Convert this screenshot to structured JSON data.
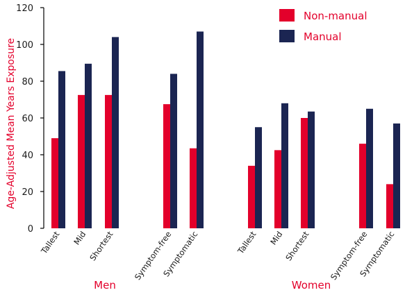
{
  "chart_data": {
    "type": "bar",
    "ylabel": "Age-Adjusted Mean Years Exposure",
    "ylim": [
      0,
      120
    ],
    "yticks": [
      0,
      20,
      40,
      60,
      80,
      100,
      120
    ],
    "categories": [
      "Tallest",
      "Mid",
      "Shortest",
      "Symptom-free",
      "Symptomatic",
      "Tallest",
      "Mid",
      "Shortest",
      "Symptom-free",
      "Symptomatic"
    ],
    "groups": [
      {
        "label": "Men",
        "categories": [
          "Tallest",
          "Mid",
          "Shortest",
          "Symptom-free",
          "Symptomatic"
        ]
      },
      {
        "label": "Women",
        "categories": [
          "Tallest",
          "Mid",
          "Shortest",
          "Symptom-free",
          "Symptomatic"
        ]
      }
    ],
    "series": [
      {
        "name": "Non-manual",
        "color": "#e3002b",
        "values": [
          49,
          72.5,
          72.5,
          67.5,
          43.5,
          34,
          42.5,
          60,
          46,
          24
        ]
      },
      {
        "name": "Manual",
        "color": "#1b2552",
        "values": [
          85.5,
          89.5,
          104,
          84,
          107,
          55,
          68,
          63.5,
          65,
          57
        ]
      }
    ],
    "legend": "top-right",
    "grid": false
  }
}
